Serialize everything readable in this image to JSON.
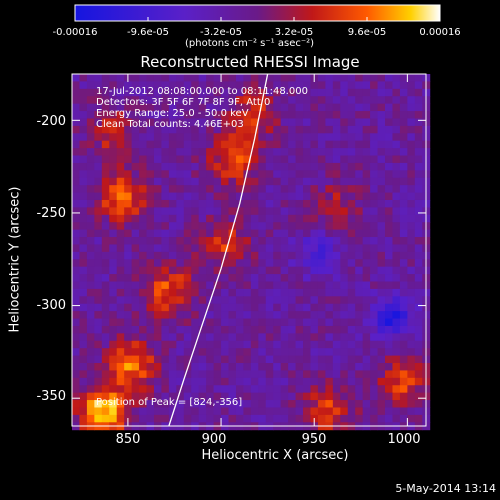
{
  "chart_data": {
    "type": "heatmap",
    "title": "Reconstructed RHESSI Image",
    "xlabel": "Heliocentric X (arcsec)",
    "ylabel": "Heliocentric Y (arcsec)",
    "xlim": [
      820,
      1010
    ],
    "ylim": [
      -365,
      -175
    ],
    "x_ticks": [
      "850",
      "900",
      "950",
      "1000"
    ],
    "y_ticks": [
      "-200",
      "-250",
      "-300",
      "-350"
    ],
    "colorbar": {
      "ticks": [
        "-0.00016",
        "-9.6e-05",
        "-3.2e-05",
        "3.2e-05",
        "9.6e-05",
        "0.00016"
      ],
      "unit": "(photons cm⁻² s⁻¹ asec⁻²)",
      "range": [
        -0.00016,
        0.00016
      ]
    },
    "annotations": [
      "17-Jul-2012 08:08:00.000 to 08:11:48.000",
      "Detectors: 3F 5F 6F 7F 8F 9F, Att 0",
      "Energy Range: 25.0 - 50.0 keV",
      "Clean     Total counts: 4.46E+03"
    ],
    "peak_label": "Position of Peak = [824,-356]",
    "peak": [
      824,
      -356
    ],
    "bright_sources": [
      {
        "x": 835,
        "y": -355,
        "value": 0.00016
      },
      {
        "x": 850,
        "y": -330,
        "value": 0.00012
      },
      {
        "x": 845,
        "y": -240,
        "value": 0.00011
      },
      {
        "x": 870,
        "y": -290,
        "value": 0.0001
      },
      {
        "x": 905,
        "y": -220,
        "value": 0.0001
      },
      {
        "x": 900,
        "y": -265,
        "value": 8e-05
      },
      {
        "x": 955,
        "y": -355,
        "value": 9e-05
      },
      {
        "x": 995,
        "y": -340,
        "value": 9e-05
      },
      {
        "x": 915,
        "y": -195,
        "value": 8e-05
      },
      {
        "x": 840,
        "y": -205,
        "value": 7e-05
      },
      {
        "x": 960,
        "y": -245,
        "value": 6e-05
      }
    ],
    "dark_sources": [
      {
        "x": 990,
        "y": -305,
        "value": -0.00012
      },
      {
        "x": 950,
        "y": -270,
        "value": -7e-05
      }
    ],
    "limb": [
      [
        872,
        -365
      ],
      [
        880,
        -340
      ],
      [
        890,
        -310
      ],
      [
        900,
        -280
      ],
      [
        910,
        -245
      ],
      [
        918,
        -210
      ],
      [
        925,
        -175
      ]
    ],
    "grid": false
  },
  "timestamp": "5-May-2014 13:14"
}
